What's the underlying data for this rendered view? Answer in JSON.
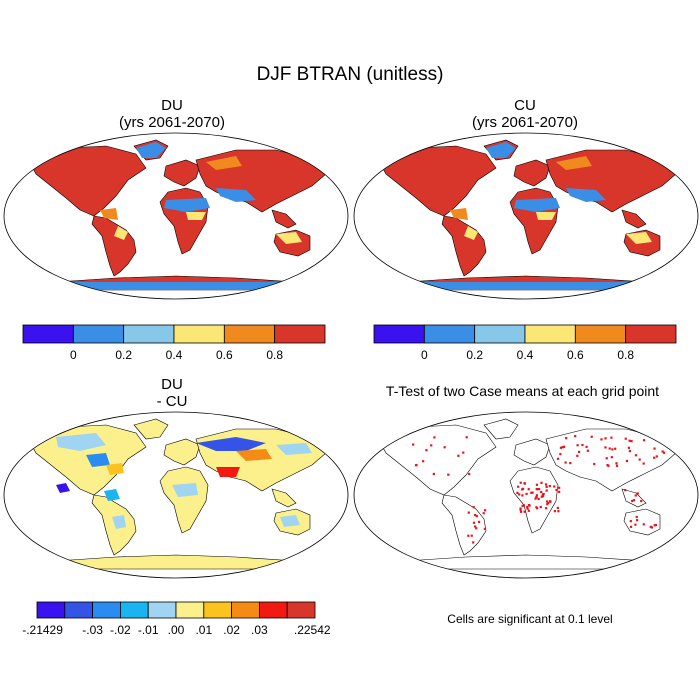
{
  "title": "DJF BTRAN (unitless)",
  "panels": [
    {
      "title_line1": "DU",
      "title_line2": "(yrs 2061-2070)"
    },
    {
      "title_line1": "CU",
      "title_line2": "(yrs 2061-2070)"
    },
    {
      "title_line1": "DU",
      "title_line2": "- CU"
    },
    {
      "title_line1": "T-Test of two Case means at each grid point",
      "title_line2": ""
    }
  ],
  "colorbar_top": {
    "colors": [
      "#3a12f0",
      "#3a8ee6",
      "#86c7ea",
      "#fbe676",
      "#f08a1e",
      "#d8352b"
    ],
    "labels": [
      "0",
      "0.2",
      "0.4",
      "0.6",
      "0.8"
    ]
  },
  "colorbar_diff": {
    "colors": [
      "#3a12f0",
      "#3354e6",
      "#2a8cf0",
      "#1ab4f0",
      "#9fd4f2",
      "#fbf08c",
      "#fbc31e",
      "#f58a14",
      "#f21a10",
      "#d8352b"
    ],
    "labels": [
      "-.21429",
      "-.03",
      "-.02",
      "-.01",
      ".00",
      ".01",
      ".02",
      ".03",
      ".22542"
    ]
  },
  "significance_note": "Cells are significant at 0.1 level",
  "colors": {
    "ocean": "#ffffff",
    "land_outline": "#000000",
    "significant": "#e8141a"
  }
}
